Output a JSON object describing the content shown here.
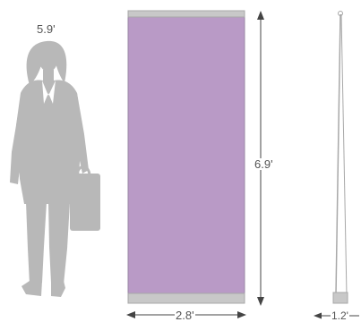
{
  "figure": {
    "person_height_label": "5.9'",
    "banner_height_label": "6.9'",
    "banner_width_label": "2.8'",
    "stand_depth_label": "1.2'"
  },
  "colors": {
    "banner_fill": "#b99ac6",
    "banner_border": "#9a8aa6",
    "rail": "#c8c8c8",
    "rail_border": "#a8a8a8",
    "silhouette": "#b8b8b8",
    "silhouette_detail": "#ffffff",
    "dimension_line": "#444444",
    "text": "#555555"
  },
  "icons": {
    "person": "businesswoman-silhouette-icon",
    "stand": "banner-stand-side-view-icon"
  }
}
